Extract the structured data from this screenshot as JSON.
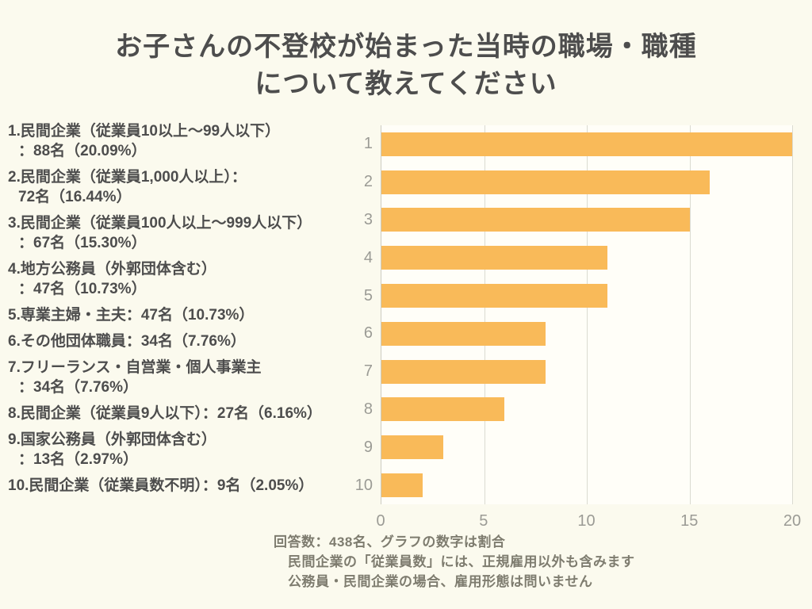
{
  "title": {
    "line1": "お子さんの不登校が始まった当時の職場・職種",
    "line2": "について教えてください"
  },
  "legend_items": [
    {
      "lines": [
        "1.民間企業（従業員10以上～99人以下）",
        "：88名（20.09%）"
      ]
    },
    {
      "lines": [
        "2.民間企業（従業員1,000人以上）：",
        "72名（16.44%）"
      ]
    },
    {
      "lines": [
        "3.民間企業（従業員100人以上～999人以下）",
        "：67名（15.30%）"
      ]
    },
    {
      "lines": [
        "4.地方公務員（外郭団体含む）",
        "：47名（10.73%）"
      ]
    },
    {
      "lines": [
        "5.専業主婦・主夫：47名（10.73%）"
      ]
    },
    {
      "lines": [
        "6.その他団体職員：34名（7.76%）"
      ]
    },
    {
      "lines": [
        "7.フリーランス・自営業・個人事業主",
        "：34名（7.76%）"
      ]
    },
    {
      "lines": [
        "8.民間企業（従業員9人以下）：27名（6.16%）"
      ]
    },
    {
      "lines": [
        "9.国家公務員（外郭団体含む）",
        "：13名（2.97%）"
      ]
    },
    {
      "lines": [
        "10.民間企業（従業員数不明）：9名（2.05%）"
      ]
    }
  ],
  "chart_data": {
    "type": "bar",
    "orientation": "horizontal",
    "title": "",
    "xlabel": "",
    "ylabel": "",
    "categories": [
      "1",
      "2",
      "3",
      "4",
      "5",
      "6",
      "7",
      "8",
      "9",
      "10"
    ],
    "values": [
      20,
      16,
      15,
      11,
      11,
      8,
      8,
      6,
      3,
      2
    ],
    "xticks": [
      0,
      5,
      10,
      15,
      20
    ],
    "xlim": [
      0,
      20
    ],
    "grid": "vertical",
    "legend_position": "none",
    "bar_color": "#F9BA59"
  },
  "footer": {
    "line1": "回答数：438名、グラフの数字は割合",
    "line2": "民間企業の「従業員数」には、正規雇用以外も含みます",
    "line3": "公務員・民間企業の場合、雇用形態は問いません"
  },
  "colors": {
    "page_bg": "#FBFAEE",
    "plot_bg": "#FFFEF8",
    "bar": "#F9BA59",
    "text": "#4D4D4D",
    "muted": "#9B9B95",
    "footer": "#7E7C6F",
    "gridline": "#DBDBD1",
    "axis": "#CCCCC2"
  }
}
